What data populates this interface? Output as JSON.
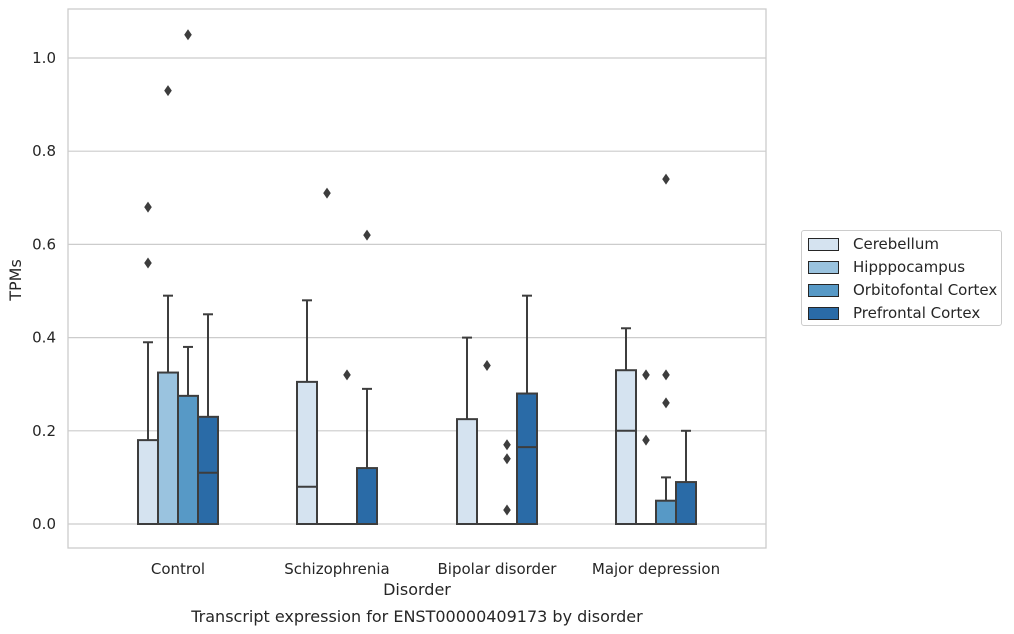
{
  "chart_data": {
    "type": "box",
    "title": "",
    "caption": "Transcript expression for ENST00000409173 by disorder",
    "xlabel": "Disorder",
    "ylabel": "TPMs",
    "ylim": [
      -0.05,
      1.1
    ],
    "yticks": [
      "0.0",
      "0.2",
      "0.4",
      "0.6",
      "0.8",
      "1.0"
    ],
    "grid": true,
    "legend_position": "right",
    "categories": [
      "Control",
      "Schizophrenia",
      "Bipolar disorder",
      "Major depression"
    ],
    "series": [
      {
        "name": "Cerebellum",
        "color": "#d5e3f0",
        "boxes": [
          {
            "q1": 0.0,
            "median": 0.0,
            "q3": 0.18,
            "whisker_low": 0.0,
            "whisker_high": 0.39,
            "outliers": [
              0.56,
              0.68
            ]
          },
          {
            "q1": 0.0,
            "median": 0.08,
            "q3": 0.305,
            "whisker_low": 0.0,
            "whisker_high": 0.48,
            "outliers": []
          },
          {
            "q1": 0.0,
            "median": 0.0,
            "q3": 0.225,
            "whisker_low": 0.0,
            "whisker_high": 0.4,
            "outliers": []
          },
          {
            "q1": 0.0,
            "median": 0.2,
            "q3": 0.33,
            "whisker_low": 0.0,
            "whisker_high": 0.42,
            "outliers": []
          }
        ]
      },
      {
        "name": "Hipppocampus",
        "color": "#9ac3df",
        "boxes": [
          {
            "q1": 0.0,
            "median": 0.0,
            "q3": 0.325,
            "whisker_low": 0.0,
            "whisker_high": 0.49,
            "outliers": [
              0.93
            ]
          },
          {
            "q1": 0.0,
            "median": 0.0,
            "q3": 0.0,
            "whisker_low": 0.0,
            "whisker_high": 0.0,
            "outliers": [
              0.71
            ]
          },
          {
            "q1": 0.0,
            "median": 0.0,
            "q3": 0.0,
            "whisker_low": 0.0,
            "whisker_high": 0.0,
            "outliers": [
              0.34
            ]
          },
          {
            "q1": 0.0,
            "median": 0.0,
            "q3": 0.0,
            "whisker_low": 0.0,
            "whisker_high": 0.0,
            "outliers": [
              0.18,
              0.32
            ]
          }
        ]
      },
      {
        "name": "Orbitofontal Cortex",
        "color": "#5799c6",
        "boxes": [
          {
            "q1": 0.0,
            "median": 0.0,
            "q3": 0.275,
            "whisker_low": 0.0,
            "whisker_high": 0.38,
            "outliers": [
              1.05
            ]
          },
          {
            "q1": 0.0,
            "median": 0.0,
            "q3": 0.0,
            "whisker_low": 0.0,
            "whisker_high": 0.0,
            "outliers": [
              0.32
            ]
          },
          {
            "q1": 0.0,
            "median": 0.0,
            "q3": 0.0,
            "whisker_low": 0.0,
            "whisker_high": 0.0,
            "outliers": [
              0.03,
              0.14,
              0.17
            ]
          },
          {
            "q1": 0.0,
            "median": 0.0,
            "q3": 0.05,
            "whisker_low": 0.0,
            "whisker_high": 0.1,
            "outliers": [
              0.26,
              0.32,
              0.74
            ]
          }
        ]
      },
      {
        "name": "Prefrontal Cortex",
        "color": "#2a6ba7",
        "boxes": [
          {
            "q1": 0.0,
            "median": 0.11,
            "q3": 0.23,
            "whisker_low": 0.0,
            "whisker_high": 0.45,
            "outliers": []
          },
          {
            "q1": 0.0,
            "median": 0.0,
            "q3": 0.12,
            "whisker_low": 0.0,
            "whisker_high": 0.29,
            "outliers": [
              0.62
            ]
          },
          {
            "q1": 0.0,
            "median": 0.165,
            "q3": 0.28,
            "whisker_low": 0.0,
            "whisker_high": 0.49,
            "outliers": []
          },
          {
            "q1": 0.0,
            "median": 0.0,
            "q3": 0.09,
            "whisker_low": 0.0,
            "whisker_high": 0.2,
            "outliers": []
          }
        ]
      }
    ]
  }
}
